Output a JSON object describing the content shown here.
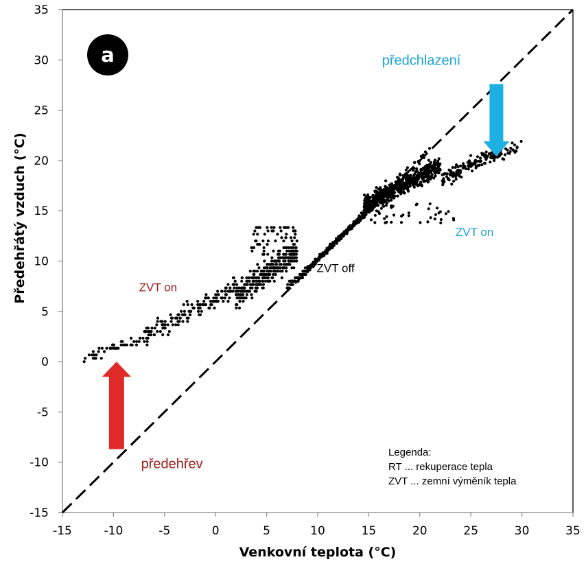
{
  "chart_data": {
    "type": "scatter",
    "title": "",
    "panel_label": "a",
    "xlabel": "Venkovní teplota (°C)",
    "ylabel": "Předehřátý vzduch (°C)",
    "xlim": [
      -15,
      35
    ],
    "ylim": [
      -15,
      35
    ],
    "xticks": [
      -15,
      -10,
      -5,
      0,
      5,
      10,
      15,
      20,
      25,
      30,
      35
    ],
    "yticks": [
      -15,
      -10,
      -5,
      0,
      5,
      10,
      15,
      20,
      25,
      30,
      35
    ],
    "grid": false,
    "reference_line": {
      "name": "y = x",
      "style": "dashed",
      "from": [
        -15,
        -15
      ],
      "to": [
        35,
        35
      ]
    },
    "series": [
      {
        "name": "měřená data",
        "marker": "dot",
        "color": "#000000",
        "approximate_clusters": [
          {
            "label": "ZVT on (předehřev) - tail",
            "x_range": [
              -13.5,
              -7
            ],
            "y_range": [
              0,
              2.5
            ],
            "slope": 0.35,
            "spread": 0.5,
            "count": 45
          },
          {
            "label": "ZVT on (předehřev) - rising band",
            "x_range": [
              -7,
              2
            ],
            "y_range": [
              2.5,
              7.5
            ],
            "slope": 0.55,
            "spread": 0.9,
            "count": 160
          },
          {
            "label": "ZVT on (předehřev) - dense cloud",
            "x_range": [
              2,
              8
            ],
            "y_range": [
              6.5,
              11
            ],
            "slope": 0.5,
            "spread": 1.2,
            "count": 320
          },
          {
            "label": "ZVT on (předehřev) - upper scatter",
            "x_range": [
              3.5,
              8
            ],
            "y_range": [
              10.5,
              13.5
            ],
            "slope": 0.0,
            "spread": 0.8,
            "count": 60
          },
          {
            "label": "ZVT off - along y=x",
            "x_range": [
              7,
              15
            ],
            "y_range": [
              7,
              15
            ],
            "slope": 1.0,
            "spread": 0.25,
            "count": 420
          },
          {
            "label": "ZVT on (předchlazení) - dense cloud",
            "x_range": [
              14.5,
              22
            ],
            "y_range": [
              15.5,
              19.5
            ],
            "slope": 0.3,
            "spread": 0.9,
            "count": 520
          },
          {
            "label": "ZVT on (předchlazení) - band",
            "x_range": [
              22,
              28
            ],
            "y_range": [
              18,
              21
            ],
            "slope": 0.3,
            "spread": 0.7,
            "count": 140
          },
          {
            "label": "ZVT on (předchlazení) - tip",
            "x_range": [
              27,
              30
            ],
            "y_range": [
              20,
              21.5
            ],
            "slope": 0.2,
            "spread": 0.5,
            "count": 25
          },
          {
            "label": "low outliers",
            "x_range": [
              14.5,
              23.5
            ],
            "y_range": [
              13.8,
              15.8
            ],
            "slope": 0.0,
            "spread": 0.5,
            "count": 45
          },
          {
            "label": "near diagonal upper",
            "x_range": [
              15,
              21
            ],
            "y_range": [
              15,
              21
            ],
            "slope": 1.0,
            "spread": 0.3,
            "count": 45
          }
        ]
      }
    ],
    "annotations": [
      {
        "id": "heating-label",
        "text": "předehřev",
        "x": -7.3,
        "y": -10.6,
        "color": "#a01c1c"
      },
      {
        "id": "cooling-label",
        "text": "předchlazení",
        "x": 16.3,
        "y": 29.5,
        "color": "#1aa3d6"
      },
      {
        "id": "zvt-on-left",
        "text": "ZVT on",
        "x": -7.5,
        "y": 7,
        "color": "#a01c1c"
      },
      {
        "id": "zvt-on-right",
        "text": "ZVT on",
        "x": 23.5,
        "y": 12.5,
        "color": "#1aa3d6"
      },
      {
        "id": "zvt-off",
        "text": "ZVT off",
        "x": 9.9,
        "y": 8.9,
        "color": "#000000"
      }
    ],
    "arrows": [
      {
        "id": "heating-arrow",
        "direction": "up",
        "x": -9.7,
        "y_from": -8.7,
        "y_to": 0,
        "color": "#e02a2a"
      },
      {
        "id": "cooling-arrow",
        "direction": "down",
        "x": 27.5,
        "y_from": 27.6,
        "y_to": 20.4,
        "color": "#1fb0e2"
      }
    ],
    "legend": {
      "position": "bottom-right",
      "title": "Legenda:",
      "items": [
        "RT ... rekuperace tepla",
        "ZVT ... zemní výměník tepla"
      ]
    }
  }
}
